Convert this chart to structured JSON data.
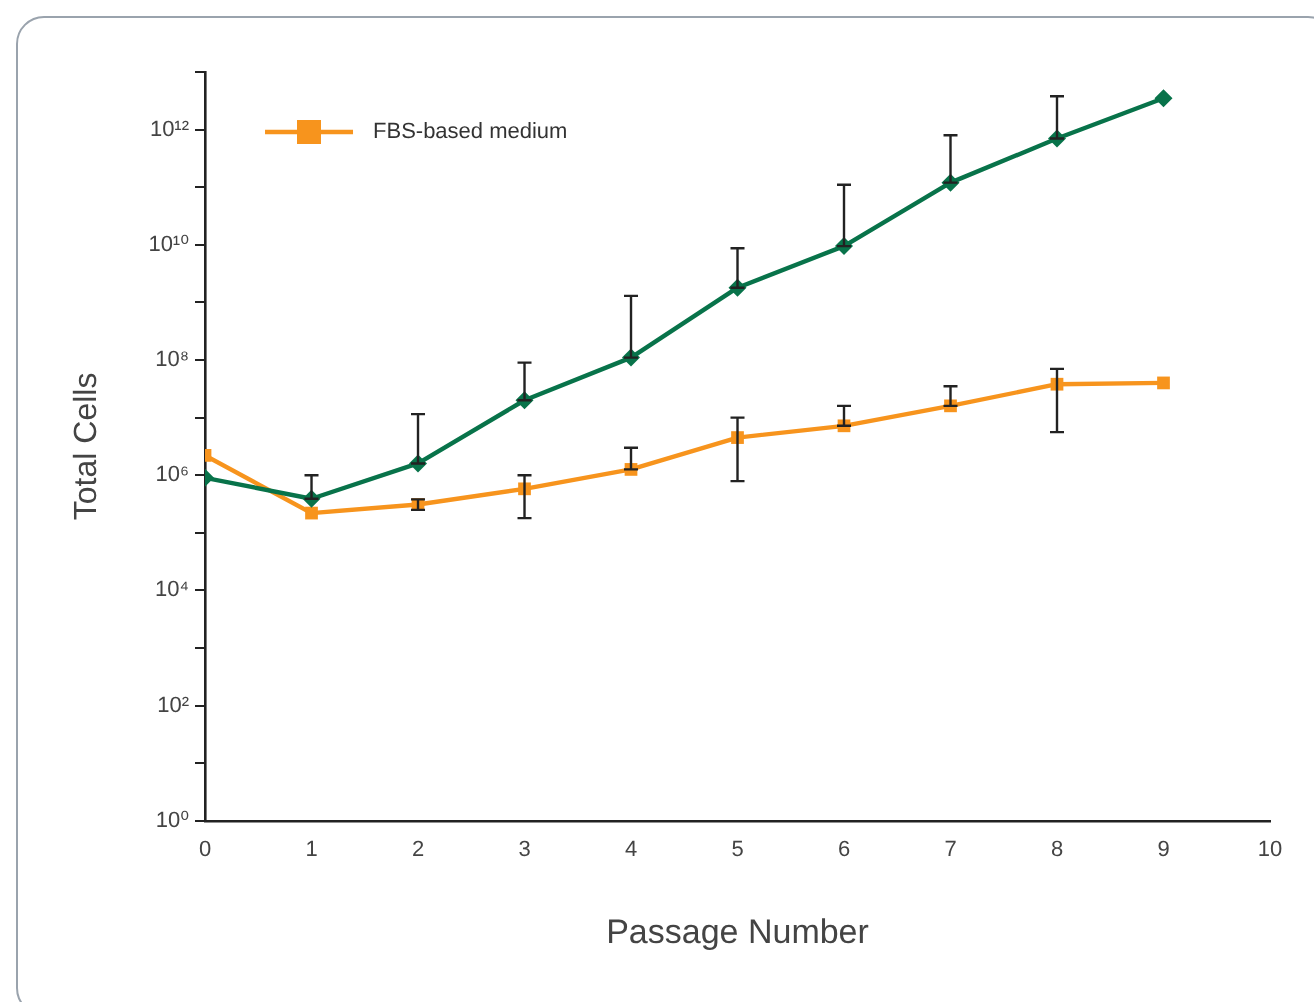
{
  "chart_data": {
    "type": "line",
    "xlabel": "Passage Number",
    "ylabel": "Total Cells",
    "log": "y",
    "grid": false,
    "legend": "top left",
    "x": [
      0,
      1,
      2,
      3,
      4,
      5,
      6,
      7,
      8,
      9
    ],
    "xlim": [
      0,
      10
    ],
    "xticks": [
      0,
      1,
      2,
      3,
      4,
      5,
      6,
      7,
      8,
      9,
      10
    ],
    "ylim": [
      1,
      10000000000000
    ],
    "yticks": [
      {
        "value": 1,
        "label": "10⁰"
      },
      {
        "value": 10,
        "label": null
      },
      {
        "value": 100,
        "label": "10²"
      },
      {
        "value": 1000,
        "label": null
      },
      {
        "value": 10000,
        "label": "10⁴"
      },
      {
        "value": 100000,
        "label": null
      },
      {
        "value": 1000000,
        "label": "10⁶"
      },
      {
        "value": 10000000,
        "label": null
      },
      {
        "value": 100000000,
        "label": "10⁸"
      },
      {
        "value": 1000000000,
        "label": null
      },
      {
        "value": 10000000000,
        "label": "10¹⁰"
      },
      {
        "value": 100000000000,
        "label": null
      },
      {
        "value": 1000000000000,
        "label": "10¹²"
      },
      {
        "value": 10000000000000,
        "label": null
      }
    ],
    "series": [
      {
        "color": "#08734a",
        "marker": "diamond",
        "values": [
          900000,
          390000,
          1600000,
          20000000,
          110000000,
          1800000000,
          9500000000,
          120000000000,
          700000000000,
          3500000000000
        ],
        "errors": [
          null,
          [
            390000,
            1000000
          ],
          [
            1600000,
            11500000
          ],
          [
            20000000,
            90000000
          ],
          [
            110000000,
            1300000000
          ],
          [
            1800000000,
            8700000000
          ],
          [
            9500000000,
            110000000000
          ],
          [
            120000000000,
            800000000000
          ],
          [
            700000000000,
            3800000000000
          ],
          null
        ]
      },
      {
        "name": "FBS-based medium",
        "color": "#f7941d",
        "marker": "square",
        "values": [
          2200000,
          220000,
          310000,
          580000,
          1260000,
          4500000,
          7200000,
          16000000,
          38000000,
          40000000
        ],
        "errors": [
          null,
          null,
          [
            250000,
            380000
          ],
          [
            180000,
            1000000
          ],
          [
            1260000,
            3000000
          ],
          [
            790000,
            10000000
          ],
          [
            7200000,
            16000000
          ],
          [
            16000000,
            35000000
          ],
          [
            5600000,
            70000000
          ],
          null
        ]
      }
    ]
  }
}
